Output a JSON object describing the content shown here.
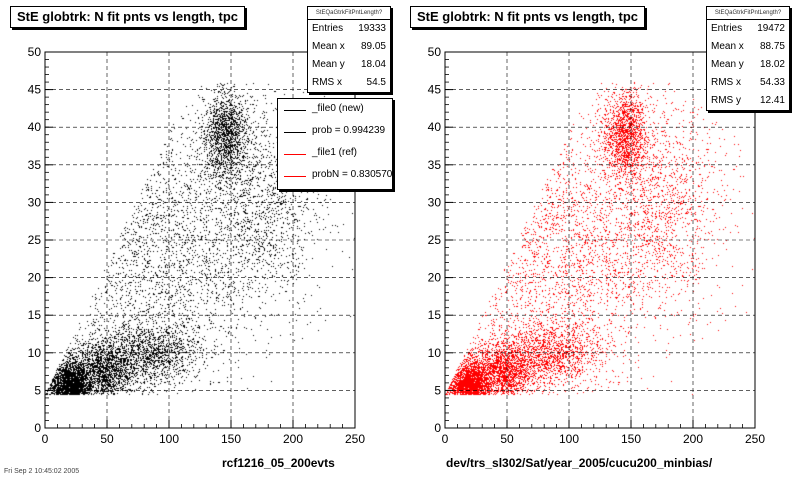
{
  "panels": [
    {
      "title": "StE globtrk: N fit pnts vs length, tpc",
      "caption": "rcf1216_05_200evts",
      "stats": {
        "header": "StEQaGtrkFitPntLength?",
        "rows": [
          {
            "label": "Entries",
            "value": "19333"
          },
          {
            "label": "Mean x",
            "value": "89.05"
          },
          {
            "label": "Mean y",
            "value": "18.04"
          },
          {
            "label": "RMS x",
            "value": "54.5"
          }
        ]
      },
      "legend": [
        {
          "text": "_file0 (new)",
          "color": "#000000"
        },
        {
          "text": "prob = 0.994239",
          "color": "#000000"
        },
        {
          "text": "_file1 (ref)",
          "color": "#ff0000"
        },
        {
          "text": "probN = 0.830570",
          "color": "#ff0000"
        }
      ]
    },
    {
      "title": "StE globtrk: N fit pnts vs length, tpc",
      "caption": "dev/trs_sl302/Sat/year_2005/cucu200_minbias/",
      "stats": {
        "header": "StEQaGtrkFitPntLength?",
        "rows": [
          {
            "label": "Entries",
            "value": "19472"
          },
          {
            "label": "Mean x",
            "value": "88.75"
          },
          {
            "label": "Mean y",
            "value": "18.02"
          },
          {
            "label": "RMS x",
            "value": "54.33"
          },
          {
            "label": "RMS y",
            "value": "12.41"
          }
        ]
      }
    }
  ],
  "date_stamp": "Fri Sep 2 10:45:02 2005",
  "chart_data": [
    {
      "type": "scatter",
      "title": "StE globtrk: N fit pnts vs length, tpc",
      "xlabel": "rcf1216_05_200evts",
      "ylabel": "",
      "xlim": [
        0,
        250
      ],
      "ylim": [
        0,
        50
      ],
      "x_ticks": [
        0,
        50,
        100,
        150,
        200,
        250
      ],
      "y_ticks": [
        0,
        5,
        10,
        15,
        20,
        25,
        30,
        35,
        40,
        45,
        50
      ],
      "grid": true,
      "marker_color": "#000000",
      "entries": 19333,
      "mean_x": 89.05,
      "mean_y": 18.04,
      "rms_x": 54.5,
      "clusters": [
        {
          "x": 20,
          "y": 5.5,
          "weight": 0.24,
          "sx": 7,
          "sy": 1.5
        },
        {
          "x": 45,
          "y": 7.5,
          "weight": 0.17,
          "sx": 14,
          "sy": 2.0
        },
        {
          "x": 85,
          "y": 10,
          "weight": 0.12,
          "sx": 20,
          "sy": 2.0
        },
        {
          "x": 145,
          "y": 39,
          "weight": 0.14,
          "sx": 9,
          "sy": 3.0
        },
        {
          "x": 100,
          "y": 24,
          "weight": 0.2,
          "sx": 35,
          "sy": 9.0
        },
        {
          "x": 175,
          "y": 30,
          "weight": 0.13,
          "sx": 25,
          "sy": 7.0
        }
      ]
    },
    {
      "type": "scatter",
      "title": "StE globtrk: N fit pnts vs length, tpc",
      "xlabel": "dev/trs_sl302/Sat/year_2005/cucu200_minbias/",
      "ylabel": "",
      "xlim": [
        0,
        250
      ],
      "ylim": [
        0,
        50
      ],
      "x_ticks": [
        0,
        50,
        100,
        150,
        200,
        250
      ],
      "y_ticks": [
        0,
        5,
        10,
        15,
        20,
        25,
        30,
        35,
        40,
        45,
        50
      ],
      "grid": true,
      "marker_color": "#ff0000",
      "entries": 19472,
      "mean_x": 88.75,
      "mean_y": 18.02,
      "rms_x": 54.33,
      "rms_y": 12.41,
      "clusters": [
        {
          "x": 20,
          "y": 5.5,
          "weight": 0.24,
          "sx": 7,
          "sy": 1.5
        },
        {
          "x": 45,
          "y": 7.5,
          "weight": 0.17,
          "sx": 14,
          "sy": 2.0
        },
        {
          "x": 85,
          "y": 10,
          "weight": 0.12,
          "sx": 20,
          "sy": 2.0
        },
        {
          "x": 145,
          "y": 39,
          "weight": 0.14,
          "sx": 9,
          "sy": 3.0
        },
        {
          "x": 100,
          "y": 24,
          "weight": 0.2,
          "sx": 35,
          "sy": 9.0
        },
        {
          "x": 175,
          "y": 30,
          "weight": 0.13,
          "sx": 25,
          "sy": 7.0
        }
      ]
    }
  ]
}
